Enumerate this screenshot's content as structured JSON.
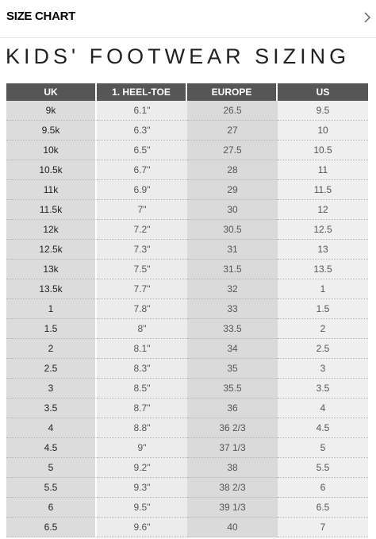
{
  "header": {
    "title": "SIZE CHART"
  },
  "heading": "KIDS' FOOTWEAR SIZING",
  "table": {
    "columns": [
      "UK",
      "1. HEEL-TOE",
      "EUROPE",
      "US"
    ],
    "rows": [
      [
        "9k",
        "6.1\"",
        "26.5",
        "9.5"
      ],
      [
        "9.5k",
        "6.3\"",
        "27",
        "10"
      ],
      [
        "10k",
        "6.5\"",
        "27.5",
        "10.5"
      ],
      [
        "10.5k",
        "6.7\"",
        "28",
        "11"
      ],
      [
        "11k",
        "6.9\"",
        "29",
        "11.5"
      ],
      [
        "11.5k",
        "7\"",
        "30",
        "12"
      ],
      [
        "12k",
        "7.2\"",
        "30.5",
        "12.5"
      ],
      [
        "12.5k",
        "7.3\"",
        "31",
        "13"
      ],
      [
        "13k",
        "7.5\"",
        "31.5",
        "13.5"
      ],
      [
        "13.5k",
        "7.7\"",
        "32",
        "1"
      ],
      [
        "1",
        "7.8\"",
        "33",
        "1.5"
      ],
      [
        "1.5",
        "8\"",
        "33.5",
        "2"
      ],
      [
        "2",
        "8.1\"",
        "34",
        "2.5"
      ],
      [
        "2.5",
        "8.3\"",
        "35",
        "3"
      ],
      [
        "3",
        "8.5\"",
        "35.5",
        "3.5"
      ],
      [
        "3.5",
        "8.7\"",
        "36",
        "4"
      ],
      [
        "4",
        "8.8\"",
        "36 2/3",
        "4.5"
      ],
      [
        "4.5",
        "9\"",
        "37 1/3",
        "5"
      ],
      [
        "5",
        "9.2\"",
        "38",
        "5.5"
      ],
      [
        "5.5",
        "9.3\"",
        "38 2/3",
        "6"
      ],
      [
        "6",
        "9.5\"",
        "39 1/3",
        "6.5"
      ],
      [
        "6.5",
        "9.6\"",
        "40",
        "7"
      ]
    ]
  }
}
